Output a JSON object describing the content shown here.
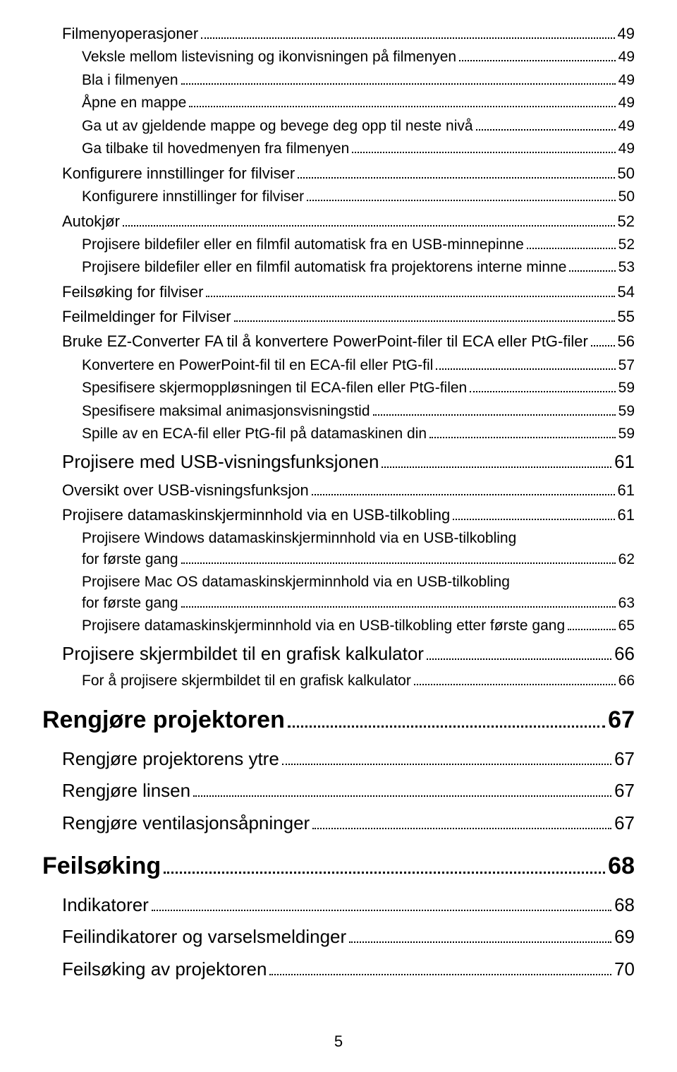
{
  "toc": [
    {
      "level": "l3",
      "label": "Filmenyoperasjoner",
      "page": "49"
    },
    {
      "level": "l4",
      "label": "Veksle mellom listevisning og ikonvisningen på filmenyen",
      "page": "49"
    },
    {
      "level": "l4",
      "label": "Bla i filmenyen",
      "page": "49"
    },
    {
      "level": "l4",
      "label": "Åpne en mappe",
      "page": "49"
    },
    {
      "level": "l4",
      "label": "Ga ut av gjeldende mappe og bevege deg opp til neste nivå",
      "page": "49"
    },
    {
      "level": "l4",
      "label": "Ga tilbake til hovedmenyen fra filmenyen",
      "page": "49"
    },
    {
      "level": "l3",
      "label": "Konfigurere innstillinger for filviser",
      "page": "50"
    },
    {
      "level": "l4",
      "label": "Konfigurere innstillinger for filviser",
      "page": "50"
    },
    {
      "level": "l3",
      "label": "Autokjør",
      "page": "52"
    },
    {
      "level": "l4",
      "label": "Projisere bildefiler eller en filmfil automatisk fra en USB-minnepinne",
      "page": "52"
    },
    {
      "level": "l4",
      "label": "Projisere bildefiler eller en filmfil automatisk fra projektorens interne minne",
      "page": "53"
    },
    {
      "level": "l3",
      "label": "Feilsøking for filviser",
      "page": "54"
    },
    {
      "level": "l3",
      "label": "Feilmeldinger for Filviser",
      "page": "55"
    },
    {
      "level": "l3",
      "label": "Bruke EZ-Converter FA til å konvertere PowerPoint-filer til ECA eller PtG-filer",
      "page": "56"
    },
    {
      "level": "l4",
      "label": "Konvertere en PowerPoint-fil til en ECA-fil eller PtG-fil",
      "page": "57"
    },
    {
      "level": "l4",
      "label": "Spesifisere skjermoppløsningen til ECA-filen eller PtG-filen",
      "page": "59"
    },
    {
      "level": "l4",
      "label": "Spesifisere maksimal animasjonsvisningstid",
      "page": "59"
    },
    {
      "level": "l4",
      "label": "Spille av en ECA-fil eller PtG-fil på datamaskinen din",
      "page": "59"
    },
    {
      "level": "l2",
      "label": "Projisere med USB-visningsfunksjonen",
      "page": "61"
    },
    {
      "level": "l3",
      "label": "Oversikt over USB-visningsfunksjon",
      "page": "61"
    },
    {
      "level": "l3",
      "label": "Projisere datamaskinskjerminnhold via en USB-tilkobling",
      "page": "61"
    },
    {
      "level": "l4-multi",
      "lines": [
        "Projisere Windows datamaskinskjerminnhold via en USB-tilkobling",
        "for første gang"
      ],
      "page": "62"
    },
    {
      "level": "l4-multi",
      "lines": [
        "Projisere Mac OS datamaskinskjerminnhold via en USB-tilkobling",
        "for første gang"
      ],
      "page": "63"
    },
    {
      "level": "l4",
      "label": "Projisere datamaskinskjerminnhold via en USB-tilkobling etter første gang",
      "page": "65"
    },
    {
      "level": "l2",
      "label": "Projisere skjermbildet til en grafisk kalkulator",
      "page": "66"
    },
    {
      "level": "l4",
      "label": "For å projisere skjermbildet til en grafisk kalkulator",
      "page": "66"
    },
    {
      "level": "l1",
      "label": "Rengjøre projektoren",
      "page": "67"
    },
    {
      "level": "l2",
      "label": "Rengjøre projektorens ytre",
      "page": "67"
    },
    {
      "level": "l2",
      "label": "Rengjøre linsen",
      "page": "67"
    },
    {
      "level": "l2",
      "label": "Rengjøre ventilasjonsåpninger",
      "page": "67"
    },
    {
      "level": "l1",
      "label": "Feilsøking",
      "page": "68"
    },
    {
      "level": "l2",
      "label": "Indikatorer",
      "page": "68"
    },
    {
      "level": "l2",
      "label": "Feilindikatorer og varselsmeldinger",
      "page": "69"
    },
    {
      "level": "l2",
      "label": "Feilsøking av projektoren",
      "page": "70"
    }
  ],
  "footer_page": "5"
}
